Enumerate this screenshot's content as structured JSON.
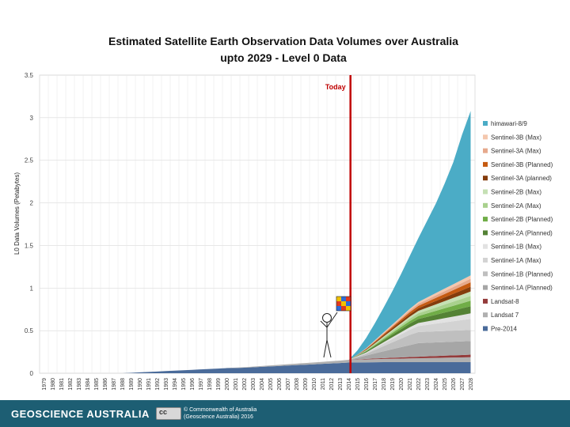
{
  "chart_data": {
    "type": "area",
    "stacked": true,
    "title": "Estimated Satellite Earth Observation Data Volumes over Australia",
    "subtitle": "upto 2029 - Level 0 Data",
    "xlabel": "",
    "ylabel": "L0 Data Volumes (Petabytes)",
    "ylim": [
      0,
      3.5
    ],
    "yticks": [
      "0",
      "0.5",
      "1",
      "1.5",
      "2",
      "2.5",
      "3",
      "3.5"
    ],
    "grid": true,
    "legend": "right",
    "x": [
      "1979",
      "1980",
      "1981",
      "1982",
      "1983",
      "1984",
      "1985",
      "1986",
      "1987",
      "1988",
      "1989",
      "1990",
      "1991",
      "1992",
      "1993",
      "1994",
      "1995",
      "1996",
      "1997",
      "1998",
      "1999",
      "2000",
      "2001",
      "2002",
      "2003",
      "2004",
      "2005",
      "2006",
      "2007",
      "2008",
      "2009",
      "2010",
      "2011",
      "2012",
      "2013",
      "2014",
      "2015",
      "2016",
      "2017",
      "2018",
      "2019",
      "2020",
      "2021",
      "2022",
      "2023",
      "2024",
      "2025",
      "2026",
      "2027",
      "2028"
    ],
    "annotation": {
      "label": "Today",
      "x": "2014",
      "color": "#c00000"
    },
    "series": [
      {
        "name": "Pre-2014",
        "color": "#4a6b9a",
        "values": [
          0,
          0,
          0,
          0,
          0,
          0,
          0,
          0,
          0,
          0,
          0.005,
          0.01,
          0.015,
          0.02,
          0.025,
          0.03,
          0.035,
          0.04,
          0.045,
          0.05,
          0.055,
          0.06,
          0.062,
          0.065,
          0.07,
          0.075,
          0.08,
          0.085,
          0.09,
          0.095,
          0.1,
          0.105,
          0.11,
          0.115,
          0.12,
          0.125,
          0.127,
          0.128,
          0.129,
          0.13,
          0.13,
          0.13,
          0.13,
          0.13,
          0.13,
          0.13,
          0.13,
          0.13,
          0.13,
          0.13
        ]
      },
      {
        "name": "Landsat 7",
        "color": "#b0b0b0",
        "values": [
          0,
          0,
          0,
          0,
          0,
          0,
          0,
          0,
          0,
          0,
          0,
          0,
          0,
          0,
          0,
          0,
          0,
          0,
          0,
          0,
          0,
          0.002,
          0.004,
          0.006,
          0.008,
          0.01,
          0.012,
          0.014,
          0.016,
          0.018,
          0.02,
          0.022,
          0.024,
          0.026,
          0.028,
          0.03,
          0.032,
          0.034,
          0.036,
          0.038,
          0.04,
          0.042,
          0.044,
          0.046,
          0.048,
          0.05,
          0.052,
          0.054,
          0.056,
          0.058
        ]
      },
      {
        "name": "Landsat-8",
        "color": "#943b3b",
        "values": [
          0,
          0,
          0,
          0,
          0,
          0,
          0,
          0,
          0,
          0,
          0,
          0,
          0,
          0,
          0,
          0,
          0,
          0,
          0,
          0,
          0,
          0,
          0,
          0,
          0,
          0,
          0,
          0,
          0,
          0,
          0,
          0,
          0,
          0,
          0,
          0.002,
          0.004,
          0.006,
          0.008,
          0.01,
          0.012,
          0.014,
          0.016,
          0.018,
          0.02,
          0.022,
          0.024,
          0.026,
          0.028,
          0.03
        ]
      },
      {
        "name": "Sentinel-1A (Planned)",
        "color": "#a6a6a6",
        "values": [
          0,
          0,
          0,
          0,
          0,
          0,
          0,
          0,
          0,
          0,
          0,
          0,
          0,
          0,
          0,
          0,
          0,
          0,
          0,
          0,
          0,
          0,
          0,
          0,
          0,
          0,
          0,
          0,
          0,
          0,
          0,
          0,
          0,
          0,
          0,
          0,
          0.02,
          0.04,
          0.06,
          0.08,
          0.1,
          0.12,
          0.14,
          0.16,
          0.16,
          0.16,
          0.16,
          0.16,
          0.16,
          0.16
        ]
      },
      {
        "name": "Sentinel-1B (Planned)",
        "color": "#bfbfbf",
        "values": [
          0,
          0,
          0,
          0,
          0,
          0,
          0,
          0,
          0,
          0,
          0,
          0,
          0,
          0,
          0,
          0,
          0,
          0,
          0,
          0,
          0,
          0,
          0,
          0,
          0,
          0,
          0,
          0,
          0,
          0,
          0,
          0,
          0,
          0,
          0,
          0,
          0.01,
          0.02,
          0.04,
          0.06,
          0.08,
          0.1,
          0.12,
          0.13,
          0.13,
          0.13,
          0.13,
          0.13,
          0.13,
          0.13
        ]
      },
      {
        "name": "Sentinel-1A (Max)",
        "color": "#d3d3d3",
        "values": [
          0,
          0,
          0,
          0,
          0,
          0,
          0,
          0,
          0,
          0,
          0,
          0,
          0,
          0,
          0,
          0,
          0,
          0,
          0,
          0,
          0,
          0,
          0,
          0,
          0,
          0,
          0,
          0,
          0,
          0,
          0,
          0,
          0,
          0,
          0,
          0,
          0.005,
          0.01,
          0.02,
          0.03,
          0.04,
          0.05,
          0.06,
          0.07,
          0.08,
          0.09,
          0.1,
          0.11,
          0.12,
          0.13
        ]
      },
      {
        "name": "Sentinel-1B (Max)",
        "color": "#e2e2e2",
        "values": [
          0,
          0,
          0,
          0,
          0,
          0,
          0,
          0,
          0,
          0,
          0,
          0,
          0,
          0,
          0,
          0,
          0,
          0,
          0,
          0,
          0,
          0,
          0,
          0,
          0,
          0,
          0,
          0,
          0,
          0,
          0,
          0,
          0,
          0,
          0,
          0,
          0.003,
          0.006,
          0.01,
          0.015,
          0.02,
          0.025,
          0.03,
          0.035,
          0.04,
          0.045,
          0.05,
          0.055,
          0.06,
          0.065
        ]
      },
      {
        "name": "Sentinel-2A (Planned)",
        "color": "#548235",
        "values": [
          0,
          0,
          0,
          0,
          0,
          0,
          0,
          0,
          0,
          0,
          0,
          0,
          0,
          0,
          0,
          0,
          0,
          0,
          0,
          0,
          0,
          0,
          0,
          0,
          0,
          0,
          0,
          0,
          0,
          0,
          0,
          0,
          0,
          0,
          0,
          0,
          0.006,
          0.012,
          0.018,
          0.024,
          0.03,
          0.036,
          0.042,
          0.048,
          0.054,
          0.06,
          0.066,
          0.072,
          0.078,
          0.084
        ]
      },
      {
        "name": "Sentinel-2B (Planned)",
        "color": "#70ad47",
        "values": [
          0,
          0,
          0,
          0,
          0,
          0,
          0,
          0,
          0,
          0,
          0,
          0,
          0,
          0,
          0,
          0,
          0,
          0,
          0,
          0,
          0,
          0,
          0,
          0,
          0,
          0,
          0,
          0,
          0,
          0,
          0,
          0,
          0,
          0,
          0,
          0,
          0,
          0.005,
          0.01,
          0.015,
          0.02,
          0.025,
          0.03,
          0.035,
          0.04,
          0.045,
          0.05,
          0.055,
          0.06,
          0.065
        ]
      },
      {
        "name": "Sentinel-2A (Max)",
        "color": "#a9d18e",
        "values": [
          0,
          0,
          0,
          0,
          0,
          0,
          0,
          0,
          0,
          0,
          0,
          0,
          0,
          0,
          0,
          0,
          0,
          0,
          0,
          0,
          0,
          0,
          0,
          0,
          0,
          0,
          0,
          0,
          0,
          0,
          0,
          0,
          0,
          0,
          0,
          0,
          0.004,
          0.008,
          0.012,
          0.016,
          0.02,
          0.024,
          0.028,
          0.032,
          0.036,
          0.04,
          0.044,
          0.048,
          0.052,
          0.056
        ]
      },
      {
        "name": "Sentinel-2B (Max)",
        "color": "#c5e0b4",
        "values": [
          0,
          0,
          0,
          0,
          0,
          0,
          0,
          0,
          0,
          0,
          0,
          0,
          0,
          0,
          0,
          0,
          0,
          0,
          0,
          0,
          0,
          0,
          0,
          0,
          0,
          0,
          0,
          0,
          0,
          0,
          0,
          0,
          0,
          0,
          0,
          0,
          0,
          0.004,
          0.008,
          0.012,
          0.016,
          0.02,
          0.024,
          0.028,
          0.032,
          0.036,
          0.04,
          0.044,
          0.048,
          0.052
        ]
      },
      {
        "name": "Sentinel-3A (planned)",
        "color": "#843c0c",
        "values": [
          0,
          0,
          0,
          0,
          0,
          0,
          0,
          0,
          0,
          0,
          0,
          0,
          0,
          0,
          0,
          0,
          0,
          0,
          0,
          0,
          0,
          0,
          0,
          0,
          0,
          0,
          0,
          0,
          0,
          0,
          0,
          0,
          0,
          0,
          0,
          0,
          0.004,
          0.008,
          0.012,
          0.016,
          0.02,
          0.024,
          0.028,
          0.032,
          0.036,
          0.04,
          0.044,
          0.048,
          0.052,
          0.056
        ]
      },
      {
        "name": "Sentinel-3B (Planned)",
        "color": "#c55a11",
        "values": [
          0,
          0,
          0,
          0,
          0,
          0,
          0,
          0,
          0,
          0,
          0,
          0,
          0,
          0,
          0,
          0,
          0,
          0,
          0,
          0,
          0,
          0,
          0,
          0,
          0,
          0,
          0,
          0,
          0,
          0,
          0,
          0,
          0,
          0,
          0,
          0,
          0,
          0.004,
          0.008,
          0.012,
          0.016,
          0.02,
          0.024,
          0.028,
          0.032,
          0.036,
          0.04,
          0.044,
          0.048,
          0.052
        ]
      },
      {
        "name": "Sentinel-3A (Max)",
        "color": "#e6a98c",
        "values": [
          0,
          0,
          0,
          0,
          0,
          0,
          0,
          0,
          0,
          0,
          0,
          0,
          0,
          0,
          0,
          0,
          0,
          0,
          0,
          0,
          0,
          0,
          0,
          0,
          0,
          0,
          0,
          0,
          0,
          0,
          0,
          0,
          0,
          0,
          0,
          0,
          0.003,
          0.006,
          0.009,
          0.012,
          0.015,
          0.018,
          0.021,
          0.024,
          0.027,
          0.03,
          0.033,
          0.036,
          0.039,
          0.042
        ]
      },
      {
        "name": "Sentinel-3B (Max)",
        "color": "#f4c7ae",
        "values": [
          0,
          0,
          0,
          0,
          0,
          0,
          0,
          0,
          0,
          0,
          0,
          0,
          0,
          0,
          0,
          0,
          0,
          0,
          0,
          0,
          0,
          0,
          0,
          0,
          0,
          0,
          0,
          0,
          0,
          0,
          0,
          0,
          0,
          0,
          0,
          0,
          0,
          0.003,
          0.006,
          0.009,
          0.012,
          0.015,
          0.018,
          0.021,
          0.024,
          0.027,
          0.03,
          0.033,
          0.036,
          0.039
        ]
      },
      {
        "name": "himawari-8/9",
        "color": "#4bacc6",
        "values": [
          0,
          0,
          0,
          0,
          0,
          0,
          0,
          0,
          0,
          0,
          0,
          0,
          0,
          0,
          0,
          0,
          0,
          0,
          0,
          0,
          0,
          0,
          0,
          0,
          0,
          0,
          0,
          0,
          0,
          0,
          0,
          0,
          0,
          0,
          0,
          0,
          0.05,
          0.12,
          0.2,
          0.29,
          0.39,
          0.5,
          0.62,
          0.75,
          0.9,
          1.05,
          1.23,
          1.43,
          1.7,
          1.93
        ]
      }
    ]
  },
  "footer": {
    "brand": "GEOSCIENCE AUSTRALIA",
    "cc_label": "cc",
    "copyright_line1": "© Commonwealth of Australia",
    "copyright_line2": "(Geoscience Australia) 2016"
  }
}
